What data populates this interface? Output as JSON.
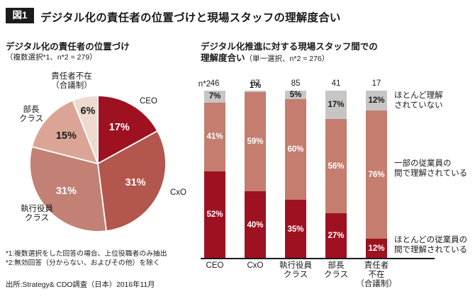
{
  "figure": {
    "badge": "図1",
    "title": "デジタル化の責任者の位置づけと現場スタッフの理解度合い"
  },
  "pie_header": {
    "title": "デジタル化の責任者の位置づけ",
    "note": "（複数選択*1、n*2 = 279）"
  },
  "bar_header": {
    "line1": "デジタル化推進に対する現場スタッフ間での",
    "line2_bold": "理解度合い",
    "line2_note": "（単一選択、n*2 = 276）"
  },
  "footnotes": [
    "*1:複数選択をした回答の場合、上位役職者のみ抽出",
    "*2:無効回答（分からない、およびその他）を除く"
  ],
  "source": "出所:Strategy& CDO調査（日本）2016年11月",
  "chart_data": [
    {
      "type": "pie",
      "title": "デジタル化の責任者の位置づけ（複数選択*1、n*2 = 279）",
      "n": 279,
      "labels": [
        "CEO",
        "CxO",
        "執行役員クラス",
        "部長クラス",
        "責任者不在（合議制）"
      ],
      "callouts": [
        "CEO",
        "CxO",
        "執行役員\nクラス",
        "部長\nクラス",
        "責任者不在\n（合議制）"
      ],
      "values": [
        17,
        31,
        31,
        15,
        6
      ],
      "unit": "%",
      "colors": [
        "#9e1121",
        "#b3564d",
        "#c28174",
        "#daa597",
        "#eedacf"
      ],
      "start_angle_deg": 0,
      "direction": "clockwise"
    },
    {
      "type": "stacked_bar",
      "title": "デジタル化推進に対する現場スタッフ間での理解度合い（単一選択、n*2 = 276）",
      "n": 276,
      "n_label": "n*2 =",
      "n_values": [
        46,
        87,
        85,
        41,
        17
      ],
      "categories": [
        "CEO",
        "CxO",
        "執行役員\nクラス",
        "部長\nクラス",
        "責任者\n不在\n（合議制）"
      ],
      "category_labels_flat": [
        "CEO",
        "CxO",
        "執行役員クラス",
        "部長クラス",
        "責任者不在（合議制）"
      ],
      "unit": "%",
      "ylim": [
        0,
        100
      ],
      "series": [
        {
          "name": "ほとんどの従業員の間で理解されている",
          "values": [
            52,
            40,
            35,
            27,
            12
          ],
          "color": "#9e1121"
        },
        {
          "name": "一部の従業員の間で理解されている",
          "values": [
            41,
            59,
            60,
            56,
            76
          ],
          "color": "#c47d6f"
        },
        {
          "name": "ほとんど理解されていない",
          "values": [
            7,
            1,
            5,
            17,
            12
          ],
          "color": "#c7c6c4"
        }
      ],
      "annotations": [
        "ほとんど理解\nされていない",
        "一部の従業員の\n間で理解されている",
        "ほとんどの従業員の\n間で理解されている"
      ],
      "legend_position": "right"
    }
  ]
}
